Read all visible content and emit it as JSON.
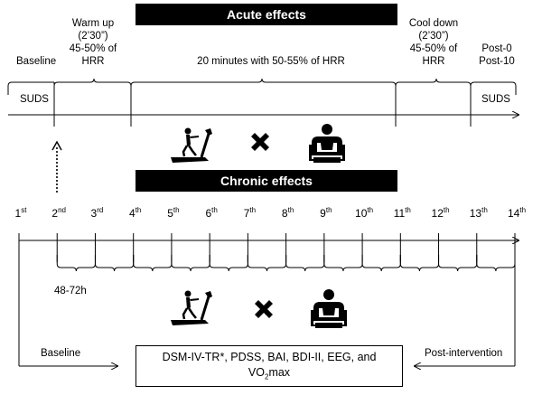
{
  "acute": {
    "title": "Acute effects",
    "phases": {
      "baseline": "Baseline",
      "warmup": [
        "Warm up",
        "(2’30”)",
        "45-50% of",
        "HRR"
      ],
      "main": "20 minutes with 50-55% of HRR",
      "cooldown": [
        "Cool down",
        "(2’30”)",
        "45-50% of",
        "HRR"
      ],
      "post": [
        "Post-0",
        "Post-10"
      ]
    },
    "suds_left": "SUDS",
    "suds_right": "SUDS"
  },
  "chronic": {
    "title": "Chronic effects",
    "sessions": [
      {
        "num": "1",
        "sup": "st"
      },
      {
        "num": "2",
        "sup": "nd"
      },
      {
        "num": "3",
        "sup": "rd"
      },
      {
        "num": "4",
        "sup": "th"
      },
      {
        "num": "5",
        "sup": "th"
      },
      {
        "num": "6",
        "sup": "th"
      },
      {
        "num": "7",
        "sup": "th"
      },
      {
        "num": "8",
        "sup": "th"
      },
      {
        "num": "9",
        "sup": "th"
      },
      {
        "num": "10",
        "sup": "th"
      },
      {
        "num": "11",
        "sup": "th"
      },
      {
        "num": "12",
        "sup": "th"
      },
      {
        "num": "13",
        "sup": "th"
      },
      {
        "num": "14",
        "sup": "th"
      }
    ],
    "interval": "48-72h",
    "baseline": "Baseline",
    "post": "Post-intervention",
    "measures_line1": "DSM-IV-TR*, PDSS, BAI, BDI-II, EEG, and",
    "measures_vo2": "VO",
    "measures_vo2_sub": "2",
    "measures_vo2_tail": "max"
  },
  "icons": [
    "treadmill-icon",
    "cross-icon",
    "seated-person-icon"
  ]
}
